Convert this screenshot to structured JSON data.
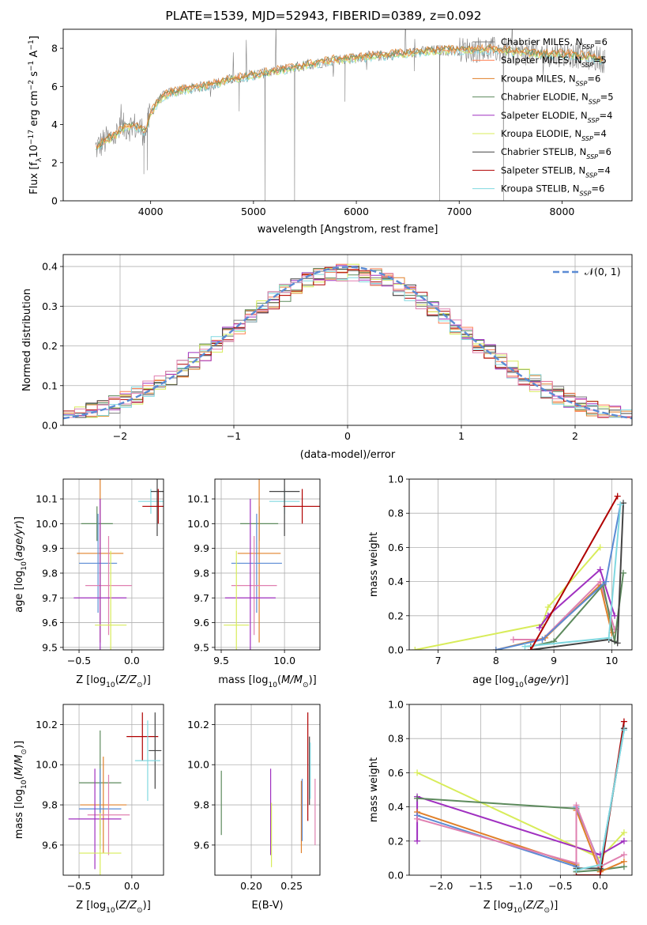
{
  "title": "PLATE=1539, MJD=52943, FIBERID=0389, z=0.092",
  "colors": {
    "chabrier_miles": "#7f7f7f",
    "salpeter_miles": "#ff7f50",
    "kroupa_miles": "#e0802a",
    "chabrier_elodie": "#5d8a5d",
    "salpeter_elodie": "#a030c0",
    "kroupa_elodie": "#d8ec5a",
    "chabrier_stelib": "#444444",
    "salpeter_stelib": "#b00000",
    "kroupa_stelib": "#80d8e0",
    "extra": "#e080b0",
    "normal": "#5b8bd4",
    "blue": "#5b8bd4"
  },
  "chart_data": [
    {
      "type": "line",
      "panel": "spectrum",
      "xlabel": "wavelength [Angstrom, rest frame]",
      "ylabel": "Flux [f_λ 10^-17 erg cm^-2 s^-1 A^-1]",
      "xlim": [
        3150,
        8680
      ],
      "ylim": [
        0,
        9
      ],
      "xticks": [
        4000,
        5000,
        6000,
        7000,
        8000
      ],
      "yticks": [
        0,
        2,
        4,
        6,
        8
      ],
      "legend_position": "right",
      "legend": [
        {
          "label": "Chabrier MILES, N_SSP=6",
          "color": "chabrier_miles"
        },
        {
          "label": "Salpeter MILES, N_SSP=5",
          "color": "salpeter_miles"
        },
        {
          "label": "Kroupa MILES, N_SSP=6",
          "color": "kroupa_miles"
        },
        {
          "label": "Chabrier ELODIE, N_SSP=5",
          "color": "chabrier_elodie"
        },
        {
          "label": "Salpeter ELODIE, N_SSP=4",
          "color": "salpeter_elodie"
        },
        {
          "label": "Kroupa ELODIE, N_SSP=4",
          "color": "kroupa_elodie"
        },
        {
          "label": "Chabrier STELIB, N_SSP=6",
          "color": "chabrier_stelib"
        },
        {
          "label": "Salpeter STELIB, N_SSP=4",
          "color": "salpeter_stelib"
        },
        {
          "label": "Kroupa STELIB, N_SSP=6",
          "color": "kroupa_stelib"
        }
      ],
      "continuum": {
        "x": [
          3450,
          3550,
          3650,
          3750,
          3850,
          3950,
          4000,
          4100,
          4200,
          4400,
          4600,
          4800,
          5000,
          5200,
          5400,
          5600,
          5800,
          6000,
          6200,
          6400,
          6600,
          6800,
          7000,
          7200,
          7400,
          7600,
          7800,
          8000,
          8200,
          8400
        ],
        "y": [
          2.7,
          3.1,
          3.4,
          3.9,
          3.9,
          3.6,
          4.6,
          5.4,
          5.7,
          5.9,
          6.1,
          6.4,
          6.6,
          6.8,
          7.0,
          7.2,
          7.4,
          7.5,
          7.6,
          7.7,
          7.8,
          7.9,
          7.9,
          7.95,
          7.9,
          7.8,
          7.7,
          7.7,
          7.6,
          7.4
        ]
      },
      "absorption_features": [
        {
          "x": 3934,
          "y": 1.4
        },
        {
          "x": 3969,
          "y": 1.6
        },
        {
          "x": 4861,
          "y": 4.7
        },
        {
          "x": 5112,
          "y": 0
        },
        {
          "x": 5400,
          "y": 0
        },
        {
          "x": 5890,
          "y": 5.2
        },
        {
          "x": 6563,
          "y": 6.8
        },
        {
          "x": 6810,
          "y": 0
        },
        {
          "x": 7430,
          "y": 0
        }
      ]
    },
    {
      "type": "histogram",
      "panel": "residuals",
      "xlabel": "(data-model)/error",
      "ylabel": "Normed distribution",
      "xlim": [
        -2.5,
        2.5
      ],
      "ylim": [
        0,
        0.43
      ],
      "xticks": [
        -2,
        -1,
        0,
        1,
        2
      ],
      "yticks": [
        0.0,
        0.1,
        0.2,
        0.3,
        0.4
      ],
      "legend": [
        {
          "label": "𝒩(0, 1)",
          "color": "normal",
          "style": "dashed"
        }
      ],
      "bin_edges_start": -2.5,
      "bin_width": 0.1
    },
    {
      "type": "scatter",
      "panel": "age_vs_Z",
      "xlabel": "Z [log10(Z/Z⊙)]",
      "ylabel": "age [log10(age/yr)]",
      "xlim": [
        -0.65,
        0.3
      ],
      "ylim": [
        9.49,
        10.18
      ],
      "xticks": [
        -0.5,
        0.0
      ],
      "yticks": [
        9.5,
        9.6,
        9.7,
        9.8,
        9.9,
        10.0,
        10.1
      ],
      "points": [
        {
          "series": "kroupa_stelib",
          "x": 0.18,
          "y": 10.09,
          "xerr": 0.12,
          "yerr": 0.05
        },
        {
          "series": "chabrier_stelib",
          "x": 0.24,
          "y": 10.13,
          "xerr": 0.06,
          "yerr": 0.18
        },
        {
          "series": "salpeter_stelib",
          "x": 0.25,
          "y": 10.07,
          "xerr": 0.15,
          "yerr": 0.07
        },
        {
          "series": "chabrier_elodie",
          "x": -0.33,
          "y": 10.0,
          "xerr": 0.15,
          "yerr": 0.07
        },
        {
          "series": "kroupa_miles",
          "x": -0.3,
          "y": 9.88,
          "xerr": 0.22,
          "yerr": 0.36
        },
        {
          "series": "blue",
          "x": -0.32,
          "y": 9.84,
          "xerr": 0.18,
          "yerr": 0.2
        },
        {
          "series": "extra",
          "x": -0.22,
          "y": 9.75,
          "xerr": 0.22,
          "yerr": 0.2
        },
        {
          "series": "salpeter_elodie",
          "x": -0.3,
          "y": 9.7,
          "xerr": 0.25,
          "yerr": 0.4
        },
        {
          "series": "kroupa_elodie",
          "x": -0.2,
          "y": 9.59,
          "xerr": 0.15,
          "yerr": 0.3
        }
      ]
    },
    {
      "type": "scatter",
      "panel": "age_vs_mass",
      "xlabel": "mass [log10(M/M⊙)]",
      "ylabel": "",
      "xlim": [
        9.45,
        10.28
      ],
      "ylim": [
        9.49,
        10.18
      ],
      "xticks": [
        9.5,
        10.0
      ],
      "yticks": [
        9.5,
        9.6,
        9.7,
        9.8,
        9.9,
        10.0,
        10.1
      ],
      "points": [
        {
          "series": "kroupa_stelib",
          "x": 10.0,
          "y": 10.09,
          "xerr": 0.12,
          "yerr": 0.05
        },
        {
          "series": "chabrier_stelib",
          "x": 10.0,
          "y": 10.13,
          "xerr": 0.12,
          "yerr": 0.18
        },
        {
          "series": "salpeter_stelib",
          "x": 10.14,
          "y": 10.07,
          "xerr": 0.15,
          "yerr": 0.07
        },
        {
          "series": "chabrier_elodie",
          "x": 9.8,
          "y": 10.0,
          "xerr": 0.15,
          "yerr": 0.07
        },
        {
          "series": "kroupa_miles",
          "x": 9.8,
          "y": 9.88,
          "xerr": 0.17,
          "yerr": 0.36
        },
        {
          "series": "blue",
          "x": 9.78,
          "y": 9.84,
          "xerr": 0.2,
          "yerr": 0.2
        },
        {
          "series": "extra",
          "x": 9.76,
          "y": 9.75,
          "xerr": 0.18,
          "yerr": 0.2
        },
        {
          "series": "salpeter_elodie",
          "x": 9.73,
          "y": 9.7,
          "xerr": 0.2,
          "yerr": 0.4
        },
        {
          "series": "kroupa_elodie",
          "x": 9.62,
          "y": 9.59,
          "xerr": 0.1,
          "yerr": 0.3
        }
      ]
    },
    {
      "type": "line",
      "panel": "mass_weight_vs_age",
      "xlabel": "age [log10(age/yr)]",
      "ylabel": "mass weight",
      "xlim": [
        6.5,
        10.35
      ],
      "ylim": [
        0,
        1.0
      ],
      "xticks": [
        7,
        8,
        9,
        10
      ],
      "yticks": [
        0.0,
        0.2,
        0.4,
        0.6,
        0.8,
        1.0
      ],
      "series": [
        {
          "name_key": "kroupa_elodie",
          "x": [
            6.6,
            8.8,
            8.9,
            9.8
          ],
          "y": [
            0.0,
            0.15,
            0.25,
            0.6
          ]
        },
        {
          "name_key": "salpeter_elodie",
          "x": [
            8.75,
            8.9,
            9.8,
            10.05
          ],
          "y": [
            0.13,
            0.2,
            0.47,
            0.2
          ]
        },
        {
          "name_key": "kroupa_miles",
          "x": [
            8.0,
            8.85,
            9.8,
            10.0
          ],
          "y": [
            0.0,
            0.07,
            0.38,
            0.1
          ]
        },
        {
          "name_key": "extra",
          "x": [
            8.3,
            8.8,
            9.8,
            10.05
          ],
          "y": [
            0.06,
            0.06,
            0.4,
            0.12
          ]
        },
        {
          "name_key": "chabrier_elodie",
          "x": [
            8.6,
            9.0,
            9.85,
            10.05,
            10.2
          ],
          "y": [
            0.02,
            0.05,
            0.38,
            0.05,
            0.45
          ]
        },
        {
          "name_key": "blue",
          "x": [
            8.0,
            8.8,
            9.9,
            10.15
          ],
          "y": [
            0.0,
            0.06,
            0.4,
            0.85
          ]
        },
        {
          "name_key": "chabrier_stelib",
          "x": [
            8.6,
            9.95,
            10.1,
            10.2
          ],
          "y": [
            0.0,
            0.06,
            0.04,
            0.86
          ]
        },
        {
          "name_key": "kroupa_stelib",
          "x": [
            8.5,
            9.95,
            10.15
          ],
          "y": [
            0.02,
            0.07,
            0.85
          ]
        },
        {
          "name_key": "salpeter_stelib",
          "x": [
            8.6,
            10.1
          ],
          "y": [
            0.0,
            0.9
          ]
        }
      ]
    },
    {
      "type": "scatter",
      "panel": "mass_vs_Z",
      "xlabel": "Z [log10(Z/Z⊙)]",
      "ylabel": "mass [log10(M/M⊙)]",
      "xlim": [
        -0.65,
        0.3
      ],
      "ylim": [
        9.45,
        10.3
      ],
      "xticks": [
        -0.5,
        0.0
      ],
      "yticks": [
        9.6,
        9.8,
        10.0,
        10.2
      ],
      "points": [
        {
          "series": "salpeter_stelib",
          "x": 0.1,
          "y": 10.14,
          "xerr": 0.15,
          "yerr": 0.12
        },
        {
          "series": "chabrier_stelib",
          "x": 0.22,
          "y": 10.07,
          "xerr": 0.06,
          "yerr": 0.19
        },
        {
          "series": "kroupa_stelib",
          "x": 0.15,
          "y": 10.02,
          "xerr": 0.12,
          "yerr": 0.2
        },
        {
          "series": "chabrier_elodie",
          "x": -0.3,
          "y": 9.91,
          "xerr": 0.2,
          "yerr": 0.26
        },
        {
          "series": "kroupa_miles",
          "x": -0.27,
          "y": 9.8,
          "xerr": 0.22,
          "yerr": 0.24
        },
        {
          "series": "blue",
          "x": -0.3,
          "y": 9.78,
          "xerr": 0.2,
          "yerr": 0.2
        },
        {
          "series": "extra",
          "x": -0.22,
          "y": 9.75,
          "xerr": 0.2,
          "yerr": 0.2
        },
        {
          "series": "salpeter_elodie",
          "x": -0.35,
          "y": 9.73,
          "xerr": 0.25,
          "yerr": 0.25
        },
        {
          "series": "kroupa_elodie",
          "x": -0.3,
          "y": 9.56,
          "xerr": 0.2,
          "yerr": 0.2
        }
      ]
    },
    {
      "type": "scatter",
      "panel": "mass_vs_EBV",
      "xlabel": "E(B-V)",
      "ylabel": "",
      "xlim": [
        0.155,
        0.285
      ],
      "ylim": [
        9.45,
        10.3
      ],
      "xticks": [
        0.2,
        0.25
      ],
      "yticks": [
        9.6,
        9.8,
        10.0,
        10.2
      ],
      "errorbars": [
        {
          "series": "chabrier_elodie",
          "x": 0.163,
          "y1": 9.65,
          "y2": 9.97
        },
        {
          "series": "salpeter_elodie",
          "x": 0.224,
          "y1": 9.55,
          "y2": 9.98
        },
        {
          "series": "kroupa_elodie",
          "x": 0.225,
          "y1": 9.49,
          "y2": 9.81
        },
        {
          "series": "kroupa_miles",
          "x": 0.262,
          "y1": 9.56,
          "y2": 9.92
        },
        {
          "series": "blue",
          "x": 0.263,
          "y1": 9.62,
          "y2": 9.93
        },
        {
          "series": "salpeter_stelib",
          "x": 0.27,
          "y1": 9.72,
          "y2": 10.26
        },
        {
          "series": "chabrier_stelib",
          "x": 0.272,
          "y1": 9.8,
          "y2": 10.14
        },
        {
          "series": "kroupa_stelib",
          "x": 0.273,
          "y1": 9.83,
          "y2": 10.11
        },
        {
          "series": "extra",
          "x": 0.279,
          "y1": 9.6,
          "y2": 9.93
        }
      ]
    },
    {
      "type": "line",
      "panel": "mass_weight_vs_Z",
      "xlabel": "Z [log10(Z/Z⊙)]",
      "ylabel": "mass weight",
      "xlim": [
        -2.4,
        0.4
      ],
      "ylim": [
        0,
        1.0
      ],
      "xticks": [
        -2.0,
        -1.5,
        -1.0,
        -0.5,
        0.0
      ],
      "yticks": [
        0.0,
        0.2,
        0.4,
        0.6,
        0.8,
        1.0
      ],
      "series": [
        {
          "name_key": "kroupa_elodie",
          "x": [
            -2.3,
            0.0,
            0.3
          ],
          "y": [
            0.6,
            0.1,
            0.25
          ]
        },
        {
          "name_key": "salpeter_elodie",
          "x": [
            -2.3,
            -2.3,
            0.0,
            0.3
          ],
          "y": [
            0.2,
            0.46,
            0.12,
            0.2
          ]
        },
        {
          "name_key": "chabrier_elodie",
          "x": [
            -2.3,
            -0.3,
            -0.3,
            0.0,
            0.3
          ],
          "y": [
            0.45,
            0.39,
            0.02,
            0.03,
            0.05
          ]
        },
        {
          "name_key": "kroupa_miles",
          "x": [
            -2.3,
            -0.3,
            -0.3,
            0.0,
            0.3
          ],
          "y": [
            0.37,
            0.06,
            0.38,
            0.02,
            0.08
          ]
        },
        {
          "name_key": "blue",
          "x": [
            -2.3,
            -0.3,
            -0.3,
            0.0,
            0.3
          ],
          "y": [
            0.35,
            0.05,
            0.4,
            0.06,
            0.85
          ]
        },
        {
          "name_key": "extra",
          "x": [
            -2.3,
            -0.3,
            -0.3,
            0.0,
            0.3
          ],
          "y": [
            0.33,
            0.07,
            0.41,
            0.05,
            0.12
          ]
        },
        {
          "name_key": "salpeter_stelib",
          "x": [
            -0.3,
            0.0,
            0.3
          ],
          "y": [
            0.0,
            0.0,
            0.9
          ]
        },
        {
          "name_key": "chabrier_stelib",
          "x": [
            -0.3,
            0.0,
            0.3
          ],
          "y": [
            0.04,
            0.04,
            0.86
          ]
        },
        {
          "name_key": "kroupa_stelib",
          "x": [
            -0.3,
            0.0,
            0.3
          ],
          "y": [
            0.03,
            0.06,
            0.85
          ]
        }
      ]
    }
  ]
}
